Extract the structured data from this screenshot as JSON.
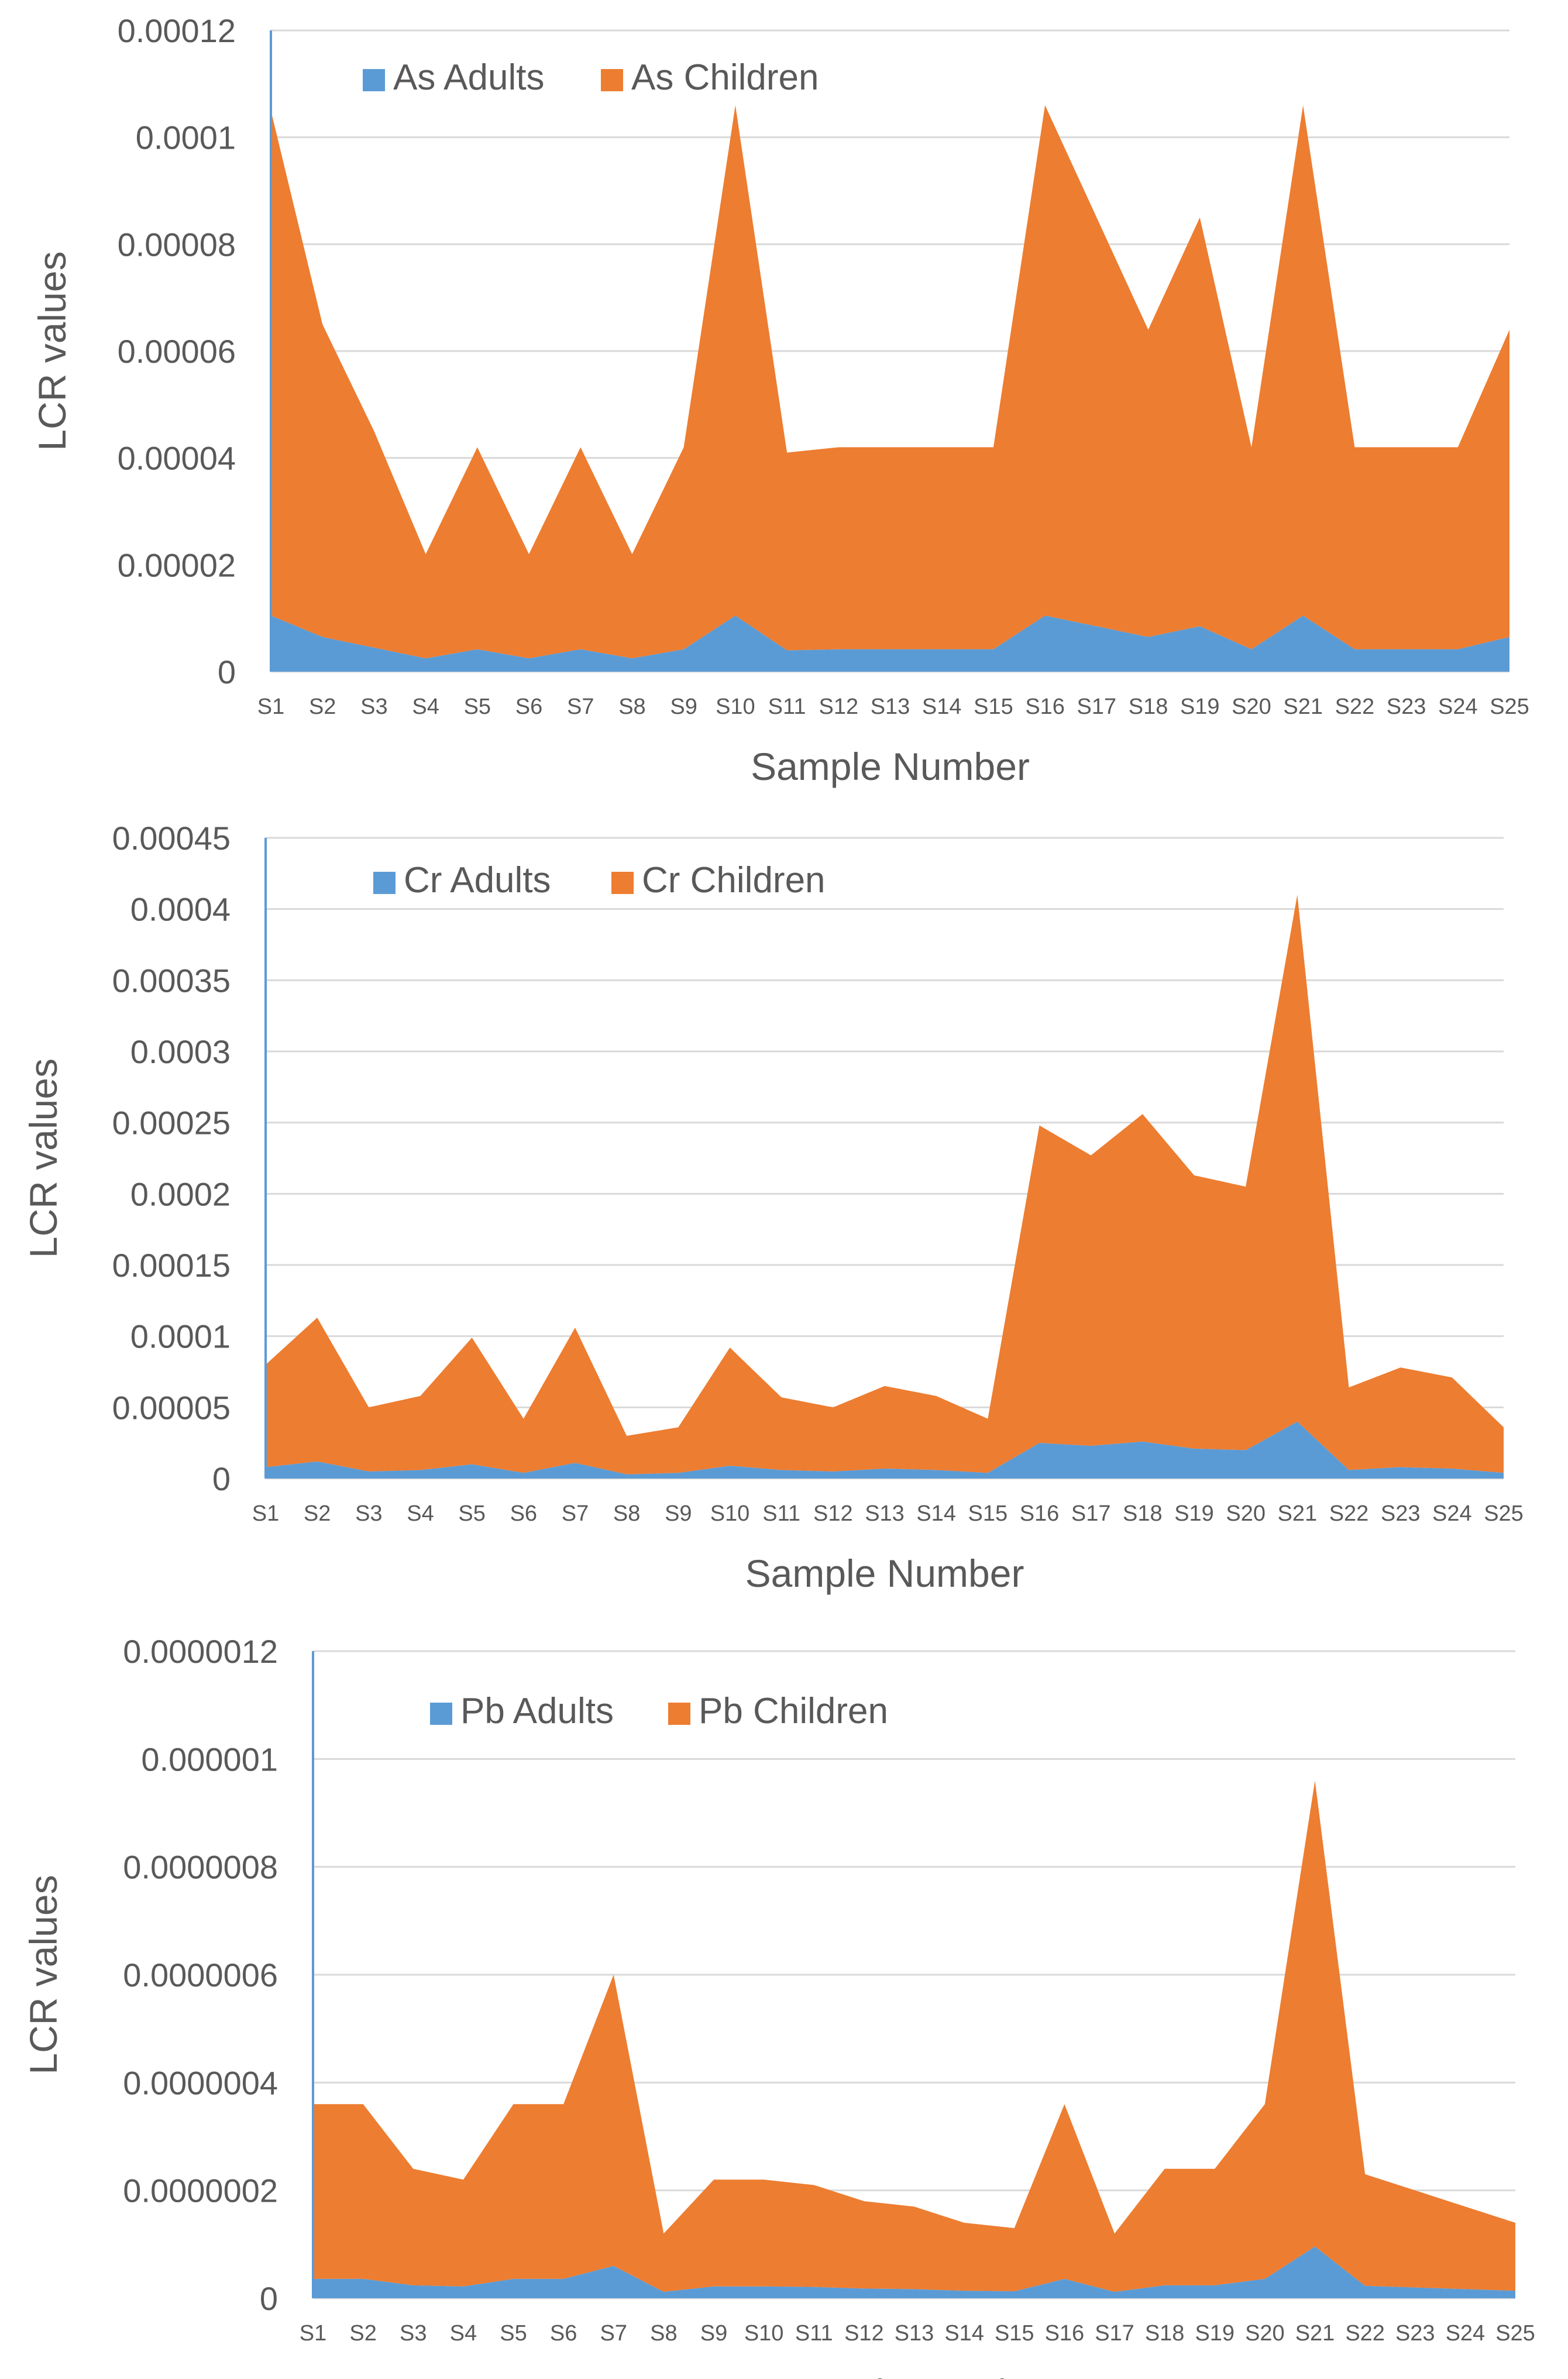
{
  "chart_data": [
    {
      "type": "area",
      "stacked": true,
      "categories": [
        "S1",
        "S2",
        "S3",
        "S4",
        "S5",
        "S6",
        "S7",
        "S8",
        "S9",
        "S10",
        "S11",
        "S12",
        "S13",
        "S14",
        "S15",
        "S16",
        "S17",
        "S18",
        "S19",
        "S20",
        "S21",
        "S22",
        "S23",
        "S24",
        "S25"
      ],
      "series": [
        {
          "name": "As Adults",
          "color": "#5B9BD5",
          "values": [
            1.05e-05,
            6.5e-06,
            4.5e-06,
            2.5e-06,
            4.2e-06,
            2.5e-06,
            4.2e-06,
            2.5e-06,
            4.2e-06,
            1.05e-05,
            4e-06,
            4.2e-06,
            4.2e-06,
            4.2e-06,
            4.2e-06,
            1.05e-05,
            8.5e-06,
            6.5e-06,
            8.5e-06,
            4.2e-06,
            1.05e-05,
            4.2e-06,
            4.2e-06,
            4.2e-06,
            6.5e-06
          ]
        },
        {
          "name": "As Children",
          "color": "#ED7D31",
          "values": [
            9.45e-05,
            5.85e-05,
            4.05e-05,
            1.95e-05,
            3.78e-05,
            1.95e-05,
            3.78e-05,
            1.95e-05,
            3.78e-05,
            9.55e-05,
            3.7e-05,
            3.78e-05,
            3.78e-05,
            3.78e-05,
            3.78e-05,
            9.55e-05,
            7.65e-05,
            5.75e-05,
            7.65e-05,
            3.78e-05,
            9.55e-05,
            3.78e-05,
            3.78e-05,
            3.78e-05,
            5.75e-05
          ]
        }
      ],
      "title": "",
      "xlabel": "Sample Number",
      "ylabel": "LCR values",
      "ylim": [
        0,
        0.00012
      ],
      "yticks": [
        "0",
        "0.00002",
        "0.00004",
        "0.00006",
        "0.00008",
        "0.0001",
        "0.00012"
      ],
      "legend": "top-left"
    },
    {
      "type": "area",
      "stacked": true,
      "categories": [
        "S1",
        "S2",
        "S3",
        "S4",
        "S5",
        "S6",
        "S7",
        "S8",
        "S9",
        "S10",
        "S11",
        "S12",
        "S13",
        "S14",
        "S15",
        "S16",
        "S17",
        "S18",
        "S19",
        "S20",
        "S21",
        "S22",
        "S23",
        "S24",
        "S25"
      ],
      "series": [
        {
          "name": "Cr Adults",
          "color": "#5B9BD5",
          "values": [
            8e-06,
            1.2e-05,
            5e-06,
            6e-06,
            1e-05,
            4e-06,
            1.1e-05,
            3e-06,
            4e-06,
            9e-06,
            6e-06,
            5e-06,
            7e-06,
            6e-06,
            4e-06,
            2.5e-05,
            2.3e-05,
            2.6e-05,
            2.1e-05,
            2e-05,
            4e-05,
            6e-06,
            8e-06,
            7e-06,
            4e-06
          ]
        },
        {
          "name": "Cr Children",
          "color": "#ED7D31",
          "values": [
            7.2e-05,
            0.000101,
            4.5e-05,
            5.2e-05,
            8.9e-05,
            3.8e-05,
            9.5e-05,
            2.7e-05,
            3.2e-05,
            8.3e-05,
            5.1e-05,
            4.5e-05,
            5.8e-05,
            5.2e-05,
            3.8e-05,
            0.000223,
            0.000204,
            0.00023,
            0.000192,
            0.000185,
            0.00037,
            5.8e-05,
            7e-05,
            6.4e-05,
            3.2e-05
          ]
        }
      ],
      "title": "",
      "xlabel": "Sample Number",
      "ylabel": "LCR values",
      "ylim": [
        0,
        0.00045
      ],
      "yticks": [
        "0",
        "0.00005",
        "0.0001",
        "0.00015",
        "0.0002",
        "0.00025",
        "0.0003",
        "0.00035",
        "0.0004",
        "0.00045"
      ],
      "legend": "top-left"
    },
    {
      "type": "area",
      "stacked": true,
      "categories": [
        "S1",
        "S2",
        "S3",
        "S4",
        "S5",
        "S6",
        "S7",
        "S8",
        "S9",
        "S10",
        "S11",
        "S12",
        "S13",
        "S14",
        "S15",
        "S16",
        "S17",
        "S18",
        "S19",
        "S20",
        "S21",
        "S22",
        "S23",
        "S24",
        "S25"
      ],
      "series": [
        {
          "name": "Pb Adults",
          "color": "#5B9BD5",
          "values": [
            3.6e-08,
            3.6e-08,
            2.4e-08,
            2.2e-08,
            3.6e-08,
            3.6e-08,
            6e-08,
            1.2e-08,
            2.2e-08,
            2.2e-08,
            2.1e-08,
            1.8e-08,
            1.7e-08,
            1.4e-08,
            1.3e-08,
            3.6e-08,
            1.2e-08,
            2.4e-08,
            2.4e-08,
            3.6e-08,
            9.6e-08,
            2.3e-08,
            2e-08,
            1.7e-08,
            1.4e-08
          ]
        },
        {
          "name": "Pb Children",
          "color": "#ED7D31",
          "values": [
            3.24e-07,
            3.24e-07,
            2.16e-07,
            1.98e-07,
            3.24e-07,
            3.24e-07,
            5.4e-07,
            1.08e-07,
            1.98e-07,
            1.98e-07,
            1.89e-07,
            1.62e-07,
            1.53e-07,
            1.26e-07,
            1.17e-07,
            3.24e-07,
            1.08e-07,
            2.16e-07,
            2.16e-07,
            3.24e-07,
            8.64e-07,
            2.07e-07,
            1.8e-07,
            1.53e-07,
            1.26e-07
          ]
        }
      ],
      "title": "",
      "xlabel": "Sample Number",
      "ylabel": "LCR values",
      "ylim": [
        0,
        1.2e-06
      ],
      "yticks": [
        "0",
        "0.0000002",
        "0.0000004",
        "0.0000006",
        "0.0000008",
        "0.000001",
        "0.0000012"
      ],
      "legend": "top-left"
    }
  ]
}
